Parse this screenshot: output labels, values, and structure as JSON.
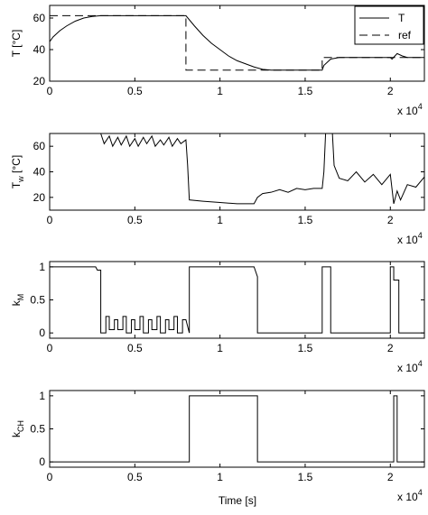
{
  "figure": {
    "x_exponent_base": "x 10",
    "x_exponent_power": "4",
    "xlabel": "Time [s]"
  },
  "chart_data": [
    {
      "type": "line",
      "ylabel_main": "T [",
      "ylabel_unit": "°C]",
      "xlim": [
        0,
        2.2
      ],
      "ylim": [
        20,
        68
      ],
      "xticks": [
        0,
        0.5,
        1,
        1.5,
        2
      ],
      "xtick_labels": [
        "0",
        "0.5",
        "1",
        "1.5",
        "2"
      ],
      "yticks": [
        20,
        40,
        60
      ],
      "ytick_labels": [
        "20",
        "40",
        "60"
      ],
      "legend_position": "top-right",
      "series": [
        {
          "name": "T",
          "style": "solid",
          "x": [
            0,
            0.02,
            0.06,
            0.1,
            0.15,
            0.2,
            0.25,
            0.3,
            0.35,
            0.4,
            0.5,
            0.6,
            0.7,
            0.75,
            0.8,
            0.85,
            0.9,
            0.95,
            1.0,
            1.05,
            1.1,
            1.15,
            1.2,
            1.25,
            1.3,
            1.4,
            1.5,
            1.6,
            1.61,
            1.65,
            1.7,
            1.8,
            1.9,
            2.0,
            2.01,
            2.04,
            2.07,
            2.1,
            2.2
          ],
          "y": [
            45,
            48,
            52,
            55,
            58,
            60,
            61,
            61.5,
            61.5,
            61.5,
            61.5,
            61.5,
            61.5,
            61.5,
            61.5,
            55,
            49,
            44,
            40,
            36,
            33,
            31,
            29,
            27.5,
            27,
            27,
            27,
            27,
            30,
            34,
            35,
            35,
            35,
            35,
            34,
            37.5,
            36,
            35,
            35
          ]
        },
        {
          "name": "ref",
          "style": "dashed",
          "x": [
            0,
            0.8,
            0.8,
            1.6,
            1.6,
            2.2
          ],
          "y": [
            61.5,
            61.5,
            27,
            27,
            35,
            35
          ]
        }
      ]
    },
    {
      "type": "line",
      "ylabel_main": "T",
      "ylabel_sub": "w",
      "ylabel_unit": " [°C]",
      "xlim": [
        0,
        2.2
      ],
      "ylim": [
        10,
        70
      ],
      "xticks": [
        0,
        0.5,
        1,
        1.5,
        2
      ],
      "xtick_labels": [
        "0",
        "0.5",
        "1",
        "1.5",
        "2"
      ],
      "yticks": [
        20,
        40,
        60
      ],
      "ytick_labels": [
        "20",
        "40",
        "60"
      ],
      "series": [
        {
          "style": "solid",
          "x": [
            0.3,
            0.32,
            0.35,
            0.37,
            0.4,
            0.42,
            0.45,
            0.47,
            0.5,
            0.52,
            0.55,
            0.57,
            0.6,
            0.62,
            0.65,
            0.67,
            0.7,
            0.72,
            0.75,
            0.77,
            0.8,
            0.81,
            0.82,
            0.9,
            1.0,
            1.1,
            1.2,
            1.22,
            1.25,
            1.3,
            1.35,
            1.4,
            1.45,
            1.5,
            1.55,
            1.6,
            1.61,
            1.62,
            1.66,
            1.67,
            1.7,
            1.75,
            1.8,
            1.85,
            1.9,
            1.95,
            2.0,
            2.02,
            2.04,
            2.06,
            2.1,
            2.15,
            2.2
          ],
          "y": [
            70,
            62,
            68,
            60,
            67,
            61,
            68,
            60,
            66,
            60,
            67,
            62,
            68,
            60,
            65,
            61,
            67,
            60,
            66,
            62,
            65,
            45,
            18,
            17,
            16,
            15,
            15,
            20,
            23,
            24,
            26,
            24,
            27,
            26,
            27,
            27,
            40,
            70,
            70,
            45,
            35,
            33,
            40,
            32,
            38,
            30,
            38,
            15,
            25,
            18,
            30,
            28,
            36
          ]
        }
      ]
    },
    {
      "type": "line",
      "ylabel_main": "k",
      "ylabel_sub": "M",
      "xlim": [
        0,
        2.2
      ],
      "ylim": [
        -0.08,
        1.08
      ],
      "xticks": [
        0,
        0.5,
        1,
        1.5,
        2
      ],
      "xtick_labels": [
        "0",
        "0.5",
        "1",
        "1.5",
        "2"
      ],
      "yticks": [
        0,
        0.5,
        1
      ],
      "ytick_labels": [
        "0",
        "0.5",
        "1"
      ],
      "series": [
        {
          "style": "solid",
          "x": [
            0,
            0.27,
            0.28,
            0.3,
            0.3,
            0.33,
            0.33,
            0.35,
            0.35,
            0.38,
            0.38,
            0.4,
            0.4,
            0.43,
            0.43,
            0.45,
            0.45,
            0.48,
            0.48,
            0.5,
            0.5,
            0.53,
            0.53,
            0.55,
            0.55,
            0.58,
            0.58,
            0.6,
            0.6,
            0.63,
            0.63,
            0.65,
            0.65,
            0.68,
            0.68,
            0.7,
            0.7,
            0.73,
            0.73,
            0.75,
            0.75,
            0.78,
            0.78,
            0.8,
            0.82,
            0.82,
            1.2,
            1.22,
            1.22,
            1.6,
            1.6,
            1.65,
            1.65,
            1.67,
            1.67,
            2.0,
            2.0,
            2.02,
            2.02,
            2.05,
            2.05,
            2.2
          ],
          "y": [
            1,
            1,
            0.95,
            0.95,
            0,
            0,
            0.25,
            0.25,
            0.05,
            0.05,
            0.2,
            0.2,
            0.05,
            0.05,
            0.25,
            0.25,
            0,
            0,
            0.2,
            0.2,
            0.05,
            0.05,
            0.25,
            0.25,
            0,
            0,
            0.2,
            0.2,
            0.05,
            0.05,
            0.25,
            0.25,
            0,
            0,
            0.2,
            0.2,
            0.05,
            0.05,
            0.25,
            0.25,
            0,
            0,
            0.2,
            0.2,
            0,
            1,
            1,
            0.85,
            0,
            0,
            1,
            1,
            0,
            0,
            0,
            0,
            1,
            1,
            0.8,
            0.8,
            0,
            0
          ]
        }
      ]
    },
    {
      "type": "line",
      "ylabel_main": "k",
      "ylabel_sub": "CH",
      "xlim": [
        0,
        2.2
      ],
      "ylim": [
        -0.08,
        1.08
      ],
      "xticks": [
        0,
        0.5,
        1,
        1.5,
        2
      ],
      "xtick_labels": [
        "0",
        "0.5",
        "1",
        "1.5",
        "2"
      ],
      "yticks": [
        0,
        0.5,
        1
      ],
      "ytick_labels": [
        "0",
        "0.5",
        "1"
      ],
      "series": [
        {
          "style": "solid",
          "x": [
            0,
            0.82,
            0.82,
            1.22,
            1.22,
            2.02,
            2.02,
            2.04,
            2.04,
            2.2
          ],
          "y": [
            0,
            0,
            1,
            1,
            0,
            0,
            1,
            1,
            0,
            0
          ]
        }
      ]
    }
  ]
}
